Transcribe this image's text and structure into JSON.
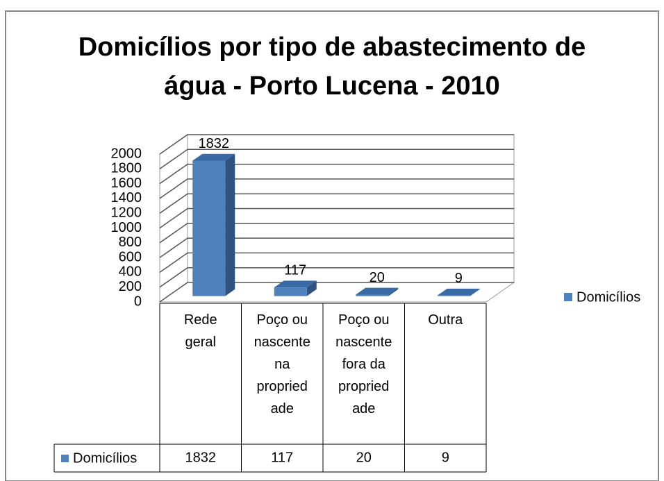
{
  "chart_data": {
    "type": "bar3d",
    "title": "Domicílios por tipo de abastecimento de água - Porto Lucena - 2010",
    "categories": [
      "Rede geral",
      "Poço ou nascente na propriedade",
      "Poço ou nascente fora da propriedade",
      "Outra"
    ],
    "series": [
      {
        "name": "Domicílios",
        "color": "#4f81bd",
        "values": [
          1832,
          117,
          20,
          9
        ]
      }
    ],
    "ylim": [
      0,
      2000
    ],
    "yticks": [
      0,
      200,
      400,
      600,
      800,
      1000,
      1200,
      1400,
      1600,
      1800,
      2000
    ],
    "grid": true,
    "legend": "right",
    "data_table": true
  }
}
